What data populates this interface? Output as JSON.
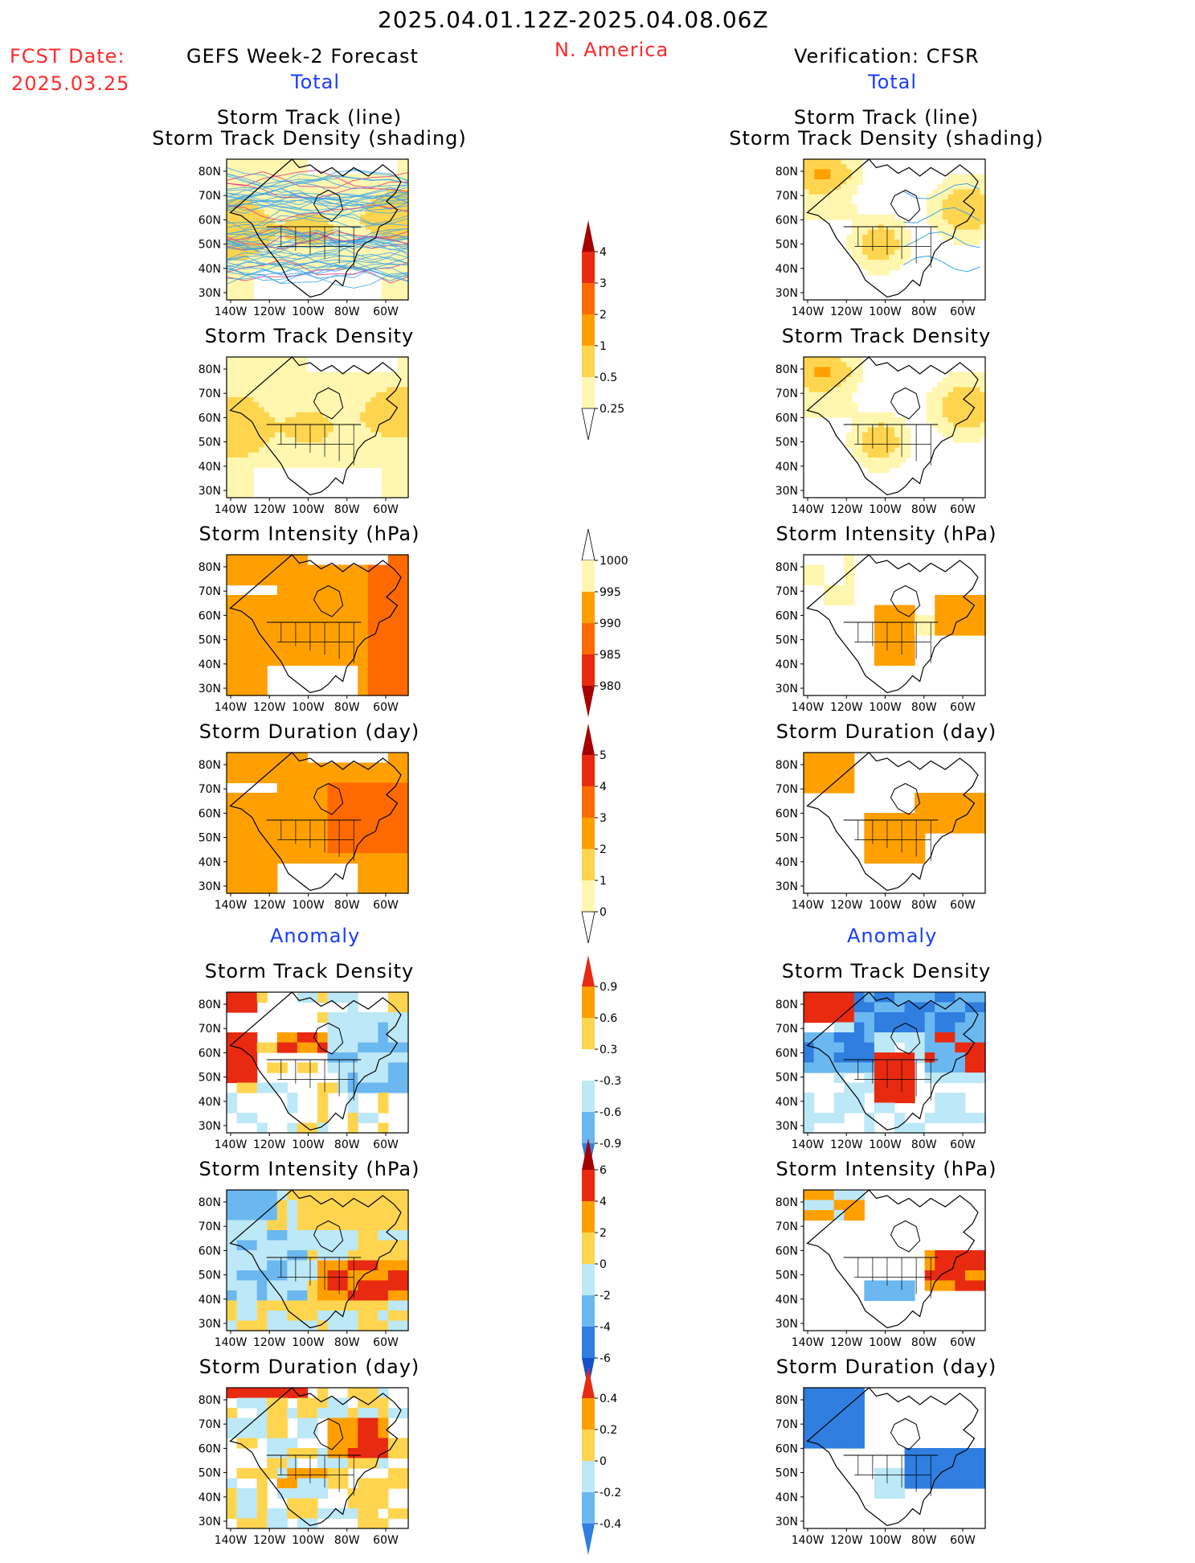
{
  "header": {
    "date_range": "2025.04.01.12Z-2025.04.08.06Z",
    "fcst_label": "FCST Date:",
    "fcst_date": "2025.03.25",
    "left_title": "GEFS Week-2 Forecast",
    "region": "N. America",
    "right_title": "Verification: CFSR",
    "total_left": "Total",
    "total_right": "Total",
    "anomaly_left": "Anomaly",
    "anomaly_right": "Anomaly"
  },
  "panels": {
    "row1_line1": "Storm Track (line)",
    "row1_line2": "Storm Track Density (shading)",
    "density": "Storm Track Density",
    "intensity": "Storm Intensity (hPa)",
    "duration": "Storm Duration (day)"
  },
  "axes": {
    "lat_labels": [
      "80N",
      "70N",
      "60N",
      "50N",
      "40N",
      "30N"
    ],
    "lon_labels": [
      "140W",
      "120W",
      "100W",
      "80W",
      "60W"
    ]
  },
  "colorbars": {
    "density_total": [
      "4",
      "3",
      "2",
      "1",
      "0.5",
      "0.25"
    ],
    "intensity_total": [
      "1000",
      "995",
      "990",
      "985",
      "980"
    ],
    "duration_total": [
      "5",
      "4",
      "3",
      "2",
      "1",
      "0"
    ],
    "density_anom": [
      "0.9",
      "0.6",
      "0.3",
      "-0.3",
      "-0.6",
      "-0.9"
    ],
    "intensity_anom": [
      "6",
      "4",
      "2",
      "0",
      "-2",
      "-4",
      "-6"
    ],
    "duration_anom": [
      "0.4",
      "0.2",
      "0",
      "-0.2",
      "-0.4"
    ]
  },
  "colors": {
    "title_red": "#ff2a2a",
    "title_blue": "#1a3cff",
    "light_yellow": "#fff7b0",
    "yellow": "#ffd54f",
    "orange": "#ffa000",
    "dark_orange": "#ff6a00",
    "red": "#e82a10",
    "dark_red": "#a50000",
    "light_blue": "#bde8f7",
    "mid_blue": "#6bb8f0",
    "blue": "#2f7ee0",
    "dark_blue": "#1550c8"
  }
}
